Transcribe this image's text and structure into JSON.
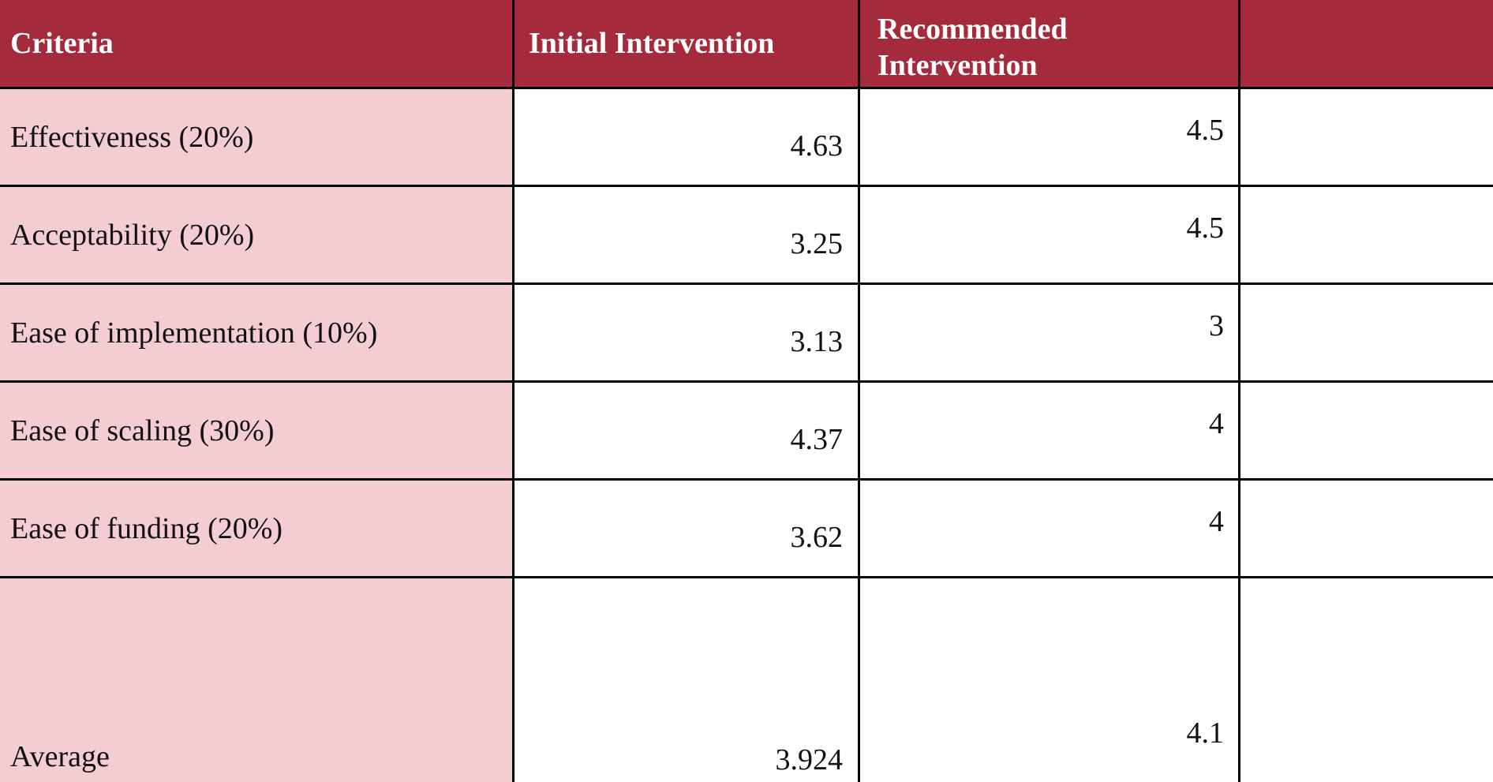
{
  "table": {
    "columns": [
      "Criteria",
      "Initial Intervention",
      "Recommended Intervention"
    ],
    "rows": [
      {
        "criteria": "Effectiveness (20%)",
        "initial": "4.63",
        "recommended": "4.5"
      },
      {
        "criteria": "Acceptability (20%)",
        "initial": "3.25",
        "recommended": "4.5"
      },
      {
        "criteria": "Ease of implementation (10%)",
        "initial": "3.13",
        "recommended": "3"
      },
      {
        "criteria": "Ease of scaling (30%)",
        "initial": "4.37",
        "recommended": "4"
      },
      {
        "criteria": "Ease of funding (20%)",
        "initial": "3.62",
        "recommended": "4"
      },
      {
        "criteria": "Average",
        "initial": "3.924",
        "recommended": "4.1"
      }
    ],
    "colors": {
      "header_bg": "#A42A3C",
      "header_text": "#FFFFFF",
      "criteria_column_bg": "#F3CDD2",
      "value_cell_bg": "#FFFFFF",
      "border": "#000000",
      "body_text": "#121212"
    }
  }
}
